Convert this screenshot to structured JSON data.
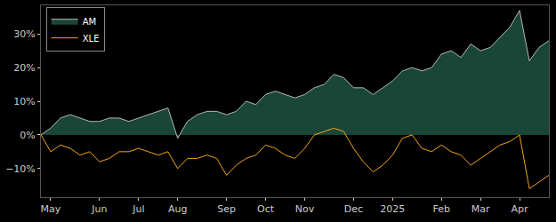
{
  "chart_data": {
    "type": "line",
    "categories": [
      null,
      "May",
      null,
      null,
      null,
      null,
      "Jun",
      null,
      null,
      null,
      "Jul",
      null,
      null,
      null,
      "Aug",
      null,
      null,
      null,
      null,
      "Sep",
      null,
      null,
      null,
      "Oct",
      null,
      null,
      null,
      "Nov",
      null,
      null,
      null,
      null,
      "Dec",
      null,
      null,
      null,
      "2025",
      null,
      null,
      null,
      null,
      "Feb",
      null,
      null,
      null,
      "Mar",
      null,
      null,
      null,
      "Apr",
      null,
      null,
      null
    ],
    "series": [
      {
        "name": "AM",
        "type": "area",
        "color": "#b8b8b8",
        "values": [
          0,
          2,
          5,
          6,
          5,
          4,
          4,
          5,
          5,
          4,
          5,
          6,
          7,
          8,
          -1,
          4,
          6,
          7,
          7,
          6,
          7,
          10,
          9,
          12,
          13,
          12,
          11,
          12,
          14,
          15,
          18,
          17,
          14,
          14,
          12,
          14,
          16,
          19,
          20,
          19,
          20,
          24,
          25,
          23,
          27,
          25,
          26,
          29,
          32,
          37,
          22,
          26,
          28
        ]
      },
      {
        "name": "XLE",
        "type": "line",
        "color": "#f5a31a",
        "values": [
          0,
          -5,
          -3,
          -4,
          -6,
          -5,
          -8,
          -7,
          -5,
          -5,
          -4,
          -5,
          -6,
          -5,
          -10,
          -7,
          -7,
          -6,
          -7,
          -12,
          -9,
          -7,
          -6,
          -3,
          -4,
          -6,
          -7,
          -4,
          0,
          1,
          2,
          1,
          -4,
          -8,
          -11,
          -9,
          -6,
          -1,
          0,
          -4,
          -5,
          -3,
          -5,
          -6,
          -9,
          -7,
          -5,
          -3,
          -2,
          0,
          -16,
          -14,
          -12
        ]
      }
    ],
    "ylim": [
      -18.5,
      38.5
    ],
    "yticks": [
      {
        "value": -10,
        "label": "−10%"
      },
      {
        "value": 0,
        "label": "0%"
      },
      {
        "value": 10,
        "label": "10%"
      },
      {
        "value": 20,
        "label": "20%"
      },
      {
        "value": 30,
        "label": "30%"
      }
    ],
    "grid": false,
    "legend": "upper left"
  }
}
